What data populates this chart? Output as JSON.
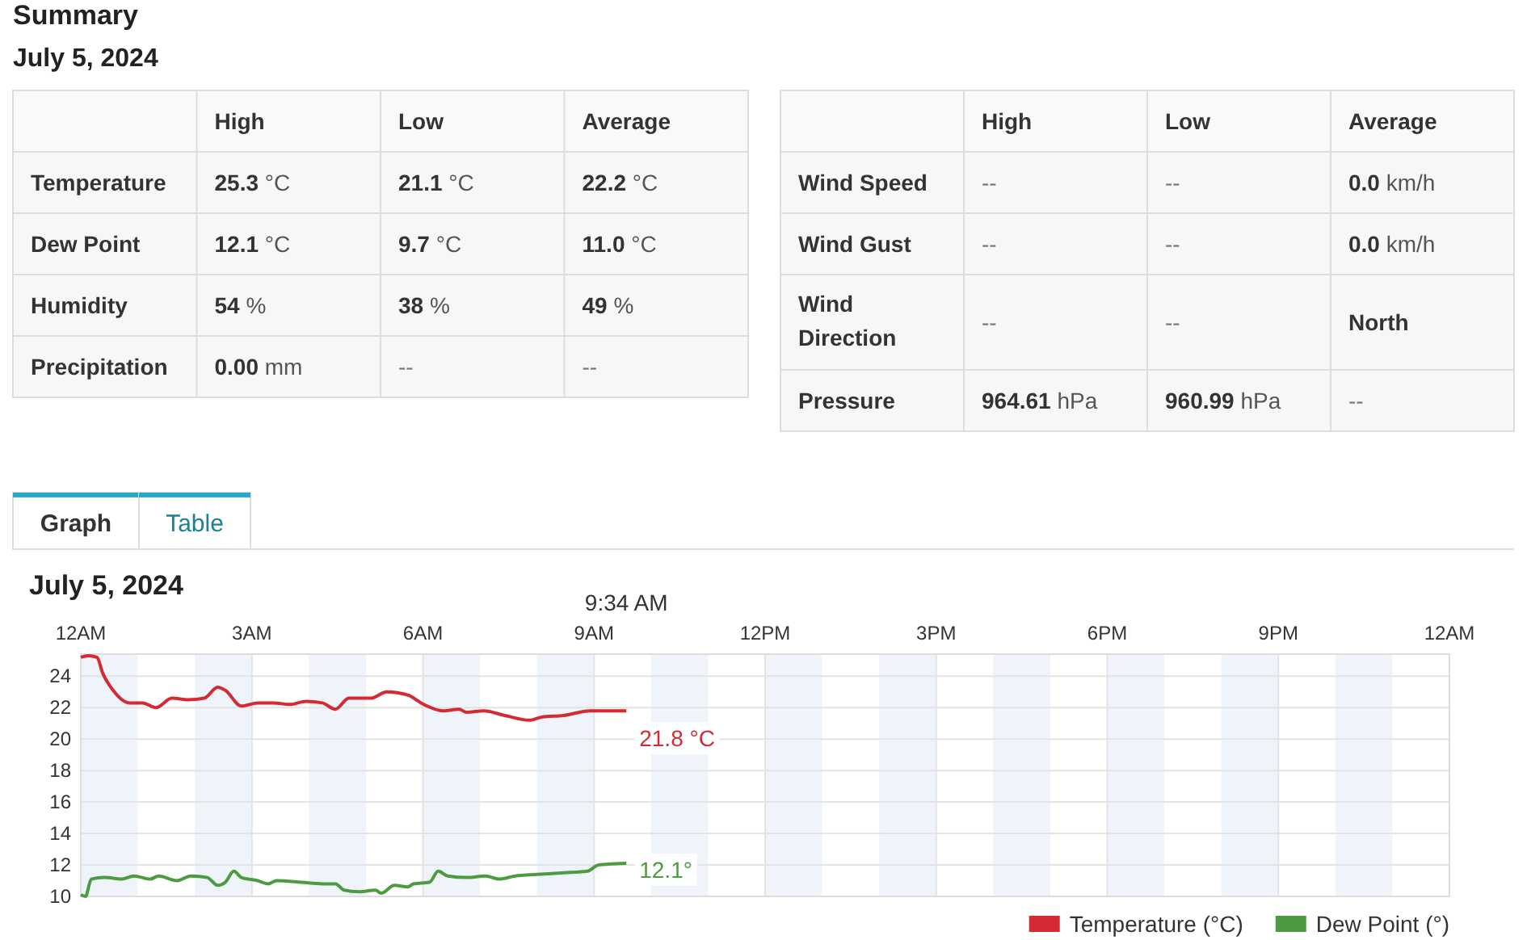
{
  "chart_data": [
    {
      "type": "other",
      "title": "Summary",
      "subtitle": "July 5, 2024",
      "categories": [
        "High",
        "Low",
        "Average"
      ],
      "y_categories": [
        "Temperature",
        "Dew Point",
        "Humidity",
        "Precipitation"
      ],
      "cell_labels": [
        [
          "25.3 °C",
          "21.1 °C",
          "22.2 °C"
        ],
        [
          "12.1 °C",
          "9.7 °C",
          "11.0 °C"
        ],
        [
          "54 %",
          "38 %",
          "49 %"
        ],
        [
          "0.00 mm",
          "--",
          "--"
        ]
      ]
    },
    {
      "type": "other",
      "categories": [
        "High",
        "Low",
        "Average"
      ],
      "y_categories": [
        "Wind Speed",
        "Wind Gust",
        "Wind Direction",
        "Pressure"
      ],
      "cell_labels": [
        [
          "--",
          "--",
          "0.0 km/h"
        ],
        [
          "--",
          "--",
          "0.0 km/h"
        ],
        [
          "--",
          "--",
          "North"
        ],
        [
          "964.61 hPa",
          "960.99 hPa",
          "--"
        ]
      ]
    },
    {
      "type": "other",
      "annotations": [
        "Graph",
        "Table"
      ]
    },
    {
      "type": "line",
      "title": "July 5, 2024",
      "xlim": [
        "2024-07-05T00:00",
        "2024-07-06T00:00"
      ],
      "xticks": [
        {
          "value": "2024-07-05T00:00",
          "label": "12AM"
        },
        {
          "value": "2024-07-05T03:00",
          "label": "3AM"
        },
        {
          "value": "2024-07-05T06:00",
          "label": "6AM"
        },
        {
          "value": "2024-07-05T09:00",
          "label": "9AM"
        },
        {
          "value": "2024-07-05T12:00",
          "label": "12PM"
        },
        {
          "value": "2024-07-05T15:00",
          "label": "3PM"
        },
        {
          "value": "2024-07-05T18:00",
          "label": "6PM"
        },
        {
          "value": "2024-07-05T21:00",
          "label": "9PM"
        },
        {
          "value": "2024-07-06T00:00",
          "label": "12AM"
        }
      ],
      "ylim": [
        10,
        25.4
      ],
      "yticks": [
        10,
        12,
        14,
        16,
        18,
        20,
        22,
        24
      ],
      "grid": true,
      "legend": "bottom right",
      "marker": "none",
      "line_style": "solid",
      "series": [
        {
          "name": "Temperature (°C)",
          "color": "#d42a33",
          "x": [
            "2024-07-05T00:00",
            "2024-07-05T00:08",
            "2024-07-05T00:17",
            "2024-07-05T00:23",
            "2024-07-05T00:34",
            "2024-07-05T00:51",
            "2024-07-05T01:05",
            "2024-07-05T01:19",
            "2024-07-05T01:36",
            "2024-07-05T01:53",
            "2024-07-05T02:10",
            "2024-07-05T02:24",
            "2024-07-05T02:32",
            "2024-07-05T02:49",
            "2024-07-05T03:06",
            "2024-07-05T03:23",
            "2024-07-05T03:40",
            "2024-07-05T03:57",
            "2024-07-05T04:14",
            "2024-07-05T04:28",
            "2024-07-05T04:42",
            "2024-07-05T05:05",
            "2024-07-05T05:22",
            "2024-07-05T05:44",
            "2024-07-05T06:01",
            "2024-07-05T06:21",
            "2024-07-05T06:38",
            "2024-07-05T06:46",
            "2024-07-05T07:04",
            "2024-07-05T07:26",
            "2024-07-05T07:52",
            "2024-07-05T08:05",
            "2024-07-05T08:28",
            "2024-07-05T08:56",
            "2024-07-05T09:34"
          ],
          "values": [
            25.2,
            25.3,
            25.2,
            24.2,
            23.1,
            22.3,
            22.3,
            22.0,
            22.6,
            22.5,
            22.6,
            23.3,
            23.1,
            22.1,
            22.3,
            22.3,
            22.2,
            22.4,
            22.3,
            21.9,
            22.6,
            22.6,
            23.0,
            22.8,
            22.2,
            21.8,
            21.9,
            21.7,
            21.8,
            21.5,
            21.2,
            21.4,
            21.5,
            21.8,
            21.8
          ]
        },
        {
          "name": "Dew Point (°)",
          "color": "#4e9a41",
          "x": [
            "2024-07-05T00:00",
            "2024-07-05T00:05",
            "2024-07-05T00:11",
            "2024-07-05T00:25",
            "2024-07-05T00:43",
            "2024-07-05T00:56",
            "2024-07-05T01:13",
            "2024-07-05T01:22",
            "2024-07-05T01:41",
            "2024-07-05T01:56",
            "2024-07-05T02:13",
            "2024-07-05T02:24",
            "2024-07-05T02:32",
            "2024-07-05T02:41",
            "2024-07-05T02:49",
            "2024-07-05T03:06",
            "2024-07-05T03:17",
            "2024-07-05T03:26",
            "2024-07-05T03:52",
            "2024-07-05T04:14",
            "2024-07-05T04:28",
            "2024-07-05T04:37",
            "2024-07-05T04:53",
            "2024-07-05T05:10",
            "2024-07-05T05:16",
            "2024-07-05T05:30",
            "2024-07-05T05:44",
            "2024-07-05T05:50",
            "2024-07-05T06:07",
            "2024-07-05T06:16",
            "2024-07-05T06:26",
            "2024-07-05T06:46",
            "2024-07-05T07:06",
            "2024-07-05T07:20",
            "2024-07-05T07:37",
            "2024-07-05T08:00",
            "2024-07-05T08:28",
            "2024-07-05T08:53",
            "2024-07-05T09:05",
            "2024-07-05T09:34"
          ],
          "values": [
            10.1,
            10.0,
            11.1,
            11.2,
            11.1,
            11.3,
            11.1,
            11.3,
            11.0,
            11.3,
            11.2,
            10.7,
            10.9,
            11.6,
            11.2,
            11.0,
            10.8,
            11.0,
            10.9,
            10.8,
            10.8,
            10.4,
            10.3,
            10.4,
            10.2,
            10.7,
            10.6,
            10.8,
            10.9,
            11.6,
            11.3,
            11.2,
            11.3,
            11.1,
            11.3,
            11.4,
            11.5,
            11.6,
            12.0,
            12.1
          ]
        }
      ],
      "bands": [
        {
          "axis": "x",
          "from": "2024-07-05T00:00",
          "to": "2024-07-05T01:00",
          "color": "#eef4fa"
        },
        {
          "axis": "x",
          "from": "2024-07-05T02:00",
          "to": "2024-07-05T03:00",
          "color": "#eef4fa"
        },
        {
          "axis": "x",
          "from": "2024-07-05T04:00",
          "to": "2024-07-05T05:00",
          "color": "#eef4fa"
        },
        {
          "axis": "x",
          "from": "2024-07-05T06:00",
          "to": "2024-07-05T07:00",
          "color": "#eef4fa"
        },
        {
          "axis": "x",
          "from": "2024-07-05T08:00",
          "to": "2024-07-05T09:00",
          "color": "#eef4fa"
        },
        {
          "axis": "x",
          "from": "2024-07-05T10:00",
          "to": "2024-07-05T11:00",
          "color": "#eef4fa"
        },
        {
          "axis": "x",
          "from": "2024-07-05T12:00",
          "to": "2024-07-05T13:00",
          "color": "#eef4fa"
        },
        {
          "axis": "x",
          "from": "2024-07-05T14:00",
          "to": "2024-07-05T15:00",
          "color": "#eef4fa"
        },
        {
          "axis": "x",
          "from": "2024-07-05T16:00",
          "to": "2024-07-05T17:00",
          "color": "#eef4fa"
        },
        {
          "axis": "x",
          "from": "2024-07-05T18:00",
          "to": "2024-07-05T19:00",
          "color": "#eef4fa"
        },
        {
          "axis": "x",
          "from": "2024-07-05T20:00",
          "to": "2024-07-05T21:00",
          "color": "#eef4fa"
        },
        {
          "axis": "x",
          "from": "2024-07-05T22:00",
          "to": "2024-07-05T23:00",
          "color": "#eef4fa"
        }
      ],
      "annotations": [
        {
          "text": "21.8 °C",
          "x": "2024-07-05T09:34",
          "y": 21.8
        },
        {
          "text": "12.1°",
          "x": "2024-07-05T09:34",
          "y": 12.1
        },
        "9:34 AM"
      ]
    }
  ]
}
